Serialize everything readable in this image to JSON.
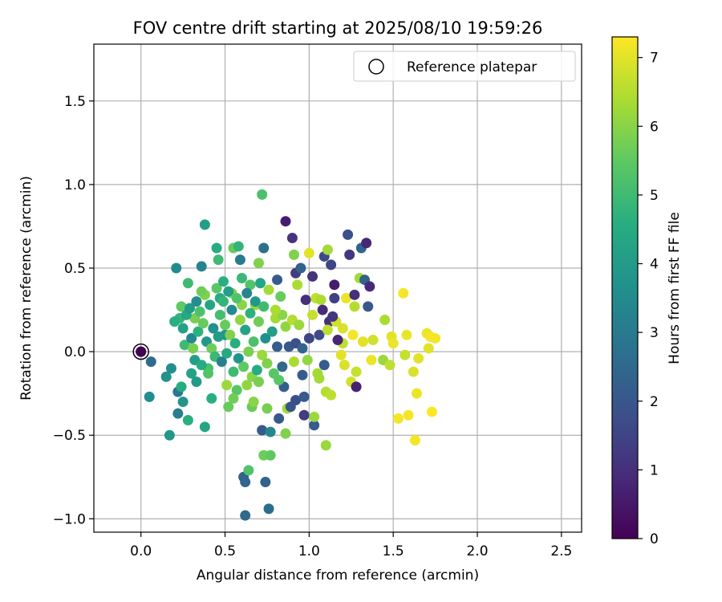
{
  "chart_data": {
    "type": "scatter",
    "title": "FOV centre drift starting at 2025/08/10 19:59:26",
    "xlabel": "Angular distance from reference (arcmin)",
    "ylabel": "Rotation from reference (arcmin)",
    "xlim": [
      -0.28,
      2.62
    ],
    "ylim": [
      -1.08,
      1.84
    ],
    "xticks": [
      0.0,
      0.5,
      1.0,
      1.5,
      2.0,
      2.5
    ],
    "xtick_labels": [
      "0.0",
      "0.5",
      "1.0",
      "1.5",
      "2.0",
      "2.5"
    ],
    "yticks": [
      -1.0,
      -0.5,
      0.0,
      0.5,
      1.0,
      1.5
    ],
    "ytick_labels": [
      "−1.0",
      "−0.5",
      "0.0",
      "0.5",
      "1.0",
      "1.5"
    ],
    "grid": true,
    "legend": {
      "placement": "top-right",
      "entries": [
        "Reference platepar"
      ]
    },
    "reference_point": {
      "x": 0.0,
      "y": 0.0,
      "hours": 0.0
    },
    "colorbar": {
      "label": "Hours from first FF file",
      "range": [
        0,
        7.3
      ],
      "ticks": [
        0,
        1,
        2,
        3,
        4,
        5,
        6,
        7
      ],
      "tick_labels": [
        "0",
        "1",
        "2",
        "3",
        "4",
        "5",
        "6",
        "7"
      ],
      "colormap": "viridis"
    },
    "points": [
      {
        "x": 0.0,
        "y": 0.0,
        "h": 0.0
      },
      {
        "x": 0.06,
        "y": -0.06,
        "h": 2.6
      },
      {
        "x": 0.05,
        "y": -0.27,
        "h": 3.6
      },
      {
        "x": 0.15,
        "y": -0.15,
        "h": 3.7
      },
      {
        "x": 0.17,
        "y": -0.5,
        "h": 3.9
      },
      {
        "x": 0.18,
        "y": -0.1,
        "h": 3.6
      },
      {
        "x": 0.21,
        "y": 0.5,
        "h": 3.5
      },
      {
        "x": 0.22,
        "y": -0.24,
        "h": 2.9
      },
      {
        "x": 0.22,
        "y": -0.37,
        "h": 3.1
      },
      {
        "x": 0.24,
        "y": -0.21,
        "h": 4.5
      },
      {
        "x": 0.25,
        "y": -0.3,
        "h": 3.8
      },
      {
        "x": 0.28,
        "y": 0.41,
        "h": 5.0
      },
      {
        "x": 0.28,
        "y": -0.41,
        "h": 4.6
      },
      {
        "x": 0.3,
        "y": -0.13,
        "h": 4.2
      },
      {
        "x": 0.32,
        "y": 0.2,
        "h": 5.8
      },
      {
        "x": 0.36,
        "y": 0.51,
        "h": 3.3
      },
      {
        "x": 0.38,
        "y": 0.76,
        "h": 4.1
      },
      {
        "x": 0.38,
        "y": -0.45,
        "h": 4.3
      },
      {
        "x": 0.4,
        "y": -0.1,
        "h": 5.2
      },
      {
        "x": 0.42,
        "y": -0.28,
        "h": 4.6
      },
      {
        "x": 0.45,
        "y": 0.62,
        "h": 4.5
      },
      {
        "x": 0.46,
        "y": 0.55,
        "h": 5.0
      },
      {
        "x": 0.47,
        "y": 0.32,
        "h": 4.5
      },
      {
        "x": 0.5,
        "y": 0.1,
        "h": 3.8
      },
      {
        "x": 0.51,
        "y": -0.2,
        "h": 6.2
      },
      {
        "x": 0.52,
        "y": -0.33,
        "h": 5.6
      },
      {
        "x": 0.54,
        "y": 0.35,
        "h": 5.9
      },
      {
        "x": 0.55,
        "y": 0.62,
        "h": 5.6
      },
      {
        "x": 0.57,
        "y": -0.23,
        "h": 5.4
      },
      {
        "x": 0.58,
        "y": 0.63,
        "h": 4.8
      },
      {
        "x": 0.59,
        "y": 0.55,
        "h": 3.0
      },
      {
        "x": 0.6,
        "y": 0.28,
        "h": 6.0
      },
      {
        "x": 0.61,
        "y": -0.75,
        "h": 2.3
      },
      {
        "x": 0.62,
        "y": -0.78,
        "h": 2.4
      },
      {
        "x": 0.62,
        "y": -0.98,
        "h": 2.5
      },
      {
        "x": 0.64,
        "y": -0.71,
        "h": 5.3
      },
      {
        "x": 0.65,
        "y": 0.4,
        "h": 5.3
      },
      {
        "x": 0.66,
        "y": -0.33,
        "h": 5.6
      },
      {
        "x": 0.68,
        "y": 0.28,
        "h": 6.1
      },
      {
        "x": 0.7,
        "y": 0.53,
        "h": 5.9
      },
      {
        "x": 0.72,
        "y": 0.94,
        "h": 5.2
      },
      {
        "x": 0.72,
        "y": -0.47,
        "h": 2.1
      },
      {
        "x": 0.73,
        "y": -0.62,
        "h": 5.7
      },
      {
        "x": 0.73,
        "y": 0.62,
        "h": 2.7
      },
      {
        "x": 0.74,
        "y": -0.78,
        "h": 2.3
      },
      {
        "x": 0.75,
        "y": -0.34,
        "h": 5.8
      },
      {
        "x": 0.76,
        "y": -0.94,
        "h": 2.6
      },
      {
        "x": 0.77,
        "y": -0.62,
        "h": 5.5
      },
      {
        "x": 0.77,
        "y": -0.48,
        "h": 3.4
      },
      {
        "x": 0.8,
        "y": 0.2,
        "h": 6.3
      },
      {
        "x": 0.81,
        "y": 0.43,
        "h": 2.1
      },
      {
        "x": 0.82,
        "y": -0.4,
        "h": 2.0
      },
      {
        "x": 0.84,
        "y": 0.22,
        "h": 6.0
      },
      {
        "x": 0.85,
        "y": -0.21,
        "h": 2.2
      },
      {
        "x": 0.86,
        "y": 0.78,
        "h": 0.6
      },
      {
        "x": 0.86,
        "y": -0.49,
        "h": 5.9
      },
      {
        "x": 0.87,
        "y": -0.34,
        "h": 6.3
      },
      {
        "x": 0.89,
        "y": -0.33,
        "h": 1.9
      },
      {
        "x": 0.9,
        "y": 0.68,
        "h": 1.1
      },
      {
        "x": 0.91,
        "y": 0.58,
        "h": 5.9
      },
      {
        "x": 0.92,
        "y": 0.47,
        "h": 1.3
      },
      {
        "x": 0.92,
        "y": -0.29,
        "h": 1.8
      },
      {
        "x": 0.93,
        "y": 0.4,
        "h": 6.4
      },
      {
        "x": 0.95,
        "y": 0.5,
        "h": 2.3
      },
      {
        "x": 0.96,
        "y": -0.14,
        "h": 2.2
      },
      {
        "x": 0.97,
        "y": -0.38,
        "h": 1.3
      },
      {
        "x": 0.97,
        "y": -0.27,
        "h": 2.1
      },
      {
        "x": 0.98,
        "y": 0.31,
        "h": 1.0
      },
      {
        "x": 0.99,
        "y": -0.05,
        "h": 6.1
      },
      {
        "x": 1.0,
        "y": 0.59,
        "h": 7.0
      },
      {
        "x": 1.02,
        "y": 0.45,
        "h": 1.1
      },
      {
        "x": 1.03,
        "y": -0.44,
        "h": 2.1
      },
      {
        "x": 1.03,
        "y": -0.39,
        "h": 6.2
      },
      {
        "x": 1.04,
        "y": 0.32,
        "h": 6.6
      },
      {
        "x": 1.05,
        "y": -0.13,
        "h": 6.3
      },
      {
        "x": 1.06,
        "y": -0.16,
        "h": 6.3
      },
      {
        "x": 1.07,
        "y": 0.31,
        "h": 6.4
      },
      {
        "x": 1.09,
        "y": -0.08,
        "h": 2.1
      },
      {
        "x": 1.09,
        "y": 0.57,
        "h": 1.6
      },
      {
        "x": 1.1,
        "y": -0.56,
        "h": 6.2
      },
      {
        "x": 1.1,
        "y": -0.24,
        "h": 6.5
      },
      {
        "x": 1.11,
        "y": 0.61,
        "h": 6.3
      },
      {
        "x": 1.12,
        "y": 0.18,
        "h": 1.0
      },
      {
        "x": 1.13,
        "y": 0.52,
        "h": 1.5
      },
      {
        "x": 1.13,
        "y": -0.26,
        "h": 6.6
      },
      {
        "x": 1.15,
        "y": 0.4,
        "h": 0.6
      },
      {
        "x": 1.16,
        "y": 0.18,
        "h": 6.8
      },
      {
        "x": 1.19,
        "y": -0.02,
        "h": 7.0
      },
      {
        "x": 1.2,
        "y": 0.05,
        "h": 6.6
      },
      {
        "x": 1.21,
        "y": -0.08,
        "h": 6.9
      },
      {
        "x": 1.22,
        "y": 0.32,
        "h": 7.1
      },
      {
        "x": 1.23,
        "y": 0.7,
        "h": 1.8
      },
      {
        "x": 1.24,
        "y": 0.58,
        "h": 1.2
      },
      {
        "x": 1.25,
        "y": -0.18,
        "h": 6.8
      },
      {
        "x": 1.26,
        "y": 0.1,
        "h": 7.2
      },
      {
        "x": 1.27,
        "y": 0.27,
        "h": 6.5
      },
      {
        "x": 1.28,
        "y": -0.21,
        "h": 0.7
      },
      {
        "x": 1.28,
        "y": -0.12,
        "h": 6.7
      },
      {
        "x": 1.3,
        "y": 0.44,
        "h": 6.3
      },
      {
        "x": 1.31,
        "y": 0.62,
        "h": 2.4
      },
      {
        "x": 1.32,
        "y": 0.06,
        "h": 7.0
      },
      {
        "x": 1.33,
        "y": 0.43,
        "h": 2.3
      },
      {
        "x": 1.34,
        "y": 0.65,
        "h": 0.8
      },
      {
        "x": 1.35,
        "y": 0.27,
        "h": 2.0
      },
      {
        "x": 1.36,
        "y": 0.39,
        "h": 0.9
      },
      {
        "x": 1.37,
        "y": -0.05,
        "h": 7.1
      },
      {
        "x": 1.38,
        "y": 0.07,
        "h": 6.8
      },
      {
        "x": 1.44,
        "y": -0.05,
        "h": 6.2
      },
      {
        "x": 1.45,
        "y": 0.19,
        "h": 6.4
      },
      {
        "x": 1.48,
        "y": -0.08,
        "h": 6.6
      },
      {
        "x": 1.49,
        "y": 0.09,
        "h": 7.0
      },
      {
        "x": 1.5,
        "y": 0.05,
        "h": 7.1
      },
      {
        "x": 1.53,
        "y": -0.4,
        "h": 7.2
      },
      {
        "x": 1.56,
        "y": 0.35,
        "h": 7.2
      },
      {
        "x": 1.57,
        "y": -0.02,
        "h": 6.7
      },
      {
        "x": 1.58,
        "y": 0.1,
        "h": 7.1
      },
      {
        "x": 1.59,
        "y": -0.38,
        "h": 7.2
      },
      {
        "x": 1.62,
        "y": -0.12,
        "h": 6.9
      },
      {
        "x": 1.63,
        "y": -0.53,
        "h": 7.2
      },
      {
        "x": 1.64,
        "y": -0.25,
        "h": 7.1
      },
      {
        "x": 1.65,
        "y": -0.04,
        "h": 7.0
      },
      {
        "x": 1.7,
        "y": 0.11,
        "h": 7.1
      },
      {
        "x": 1.71,
        "y": 0.02,
        "h": 7.0
      },
      {
        "x": 1.72,
        "y": 0.09,
        "h": 7.2
      },
      {
        "x": 1.73,
        "y": -0.36,
        "h": 7.3
      },
      {
        "x": 1.75,
        "y": 0.08,
        "h": 7.2
      },
      {
        "x": 0.23,
        "y": 0.2,
        "h": 4.8
      },
      {
        "x": 0.24,
        "y": 0.27,
        "h": 5.5
      },
      {
        "x": 0.25,
        "y": 0.14,
        "h": 4.2
      },
      {
        "x": 0.26,
        "y": 0.04,
        "h": 5.0
      },
      {
        "x": 0.27,
        "y": 0.22,
        "h": 4.4
      },
      {
        "x": 0.29,
        "y": 0.26,
        "h": 4.0
      },
      {
        "x": 0.3,
        "y": 0.08,
        "h": 3.4
      },
      {
        "x": 0.31,
        "y": 0.02,
        "h": 5.8
      },
      {
        "x": 0.32,
        "y": -0.05,
        "h": 4.1
      },
      {
        "x": 0.33,
        "y": 0.3,
        "h": 3.6
      },
      {
        "x": 0.34,
        "y": 0.12,
        "h": 4.7
      },
      {
        "x": 0.35,
        "y": 0.24,
        "h": 5.2
      },
      {
        "x": 0.36,
        "y": -0.08,
        "h": 4.5
      },
      {
        "x": 0.37,
        "y": 0.17,
        "h": 5.6
      },
      {
        "x": 0.38,
        "y": 0.34,
        "h": 5.9
      },
      {
        "x": 0.39,
        "y": 0.06,
        "h": 3.9
      },
      {
        "x": 0.4,
        "y": -0.13,
        "h": 5.3
      },
      {
        "x": 0.41,
        "y": 0.28,
        "h": 4.3
      },
      {
        "x": 0.42,
        "y": 0.02,
        "h": 5.7
      },
      {
        "x": 0.43,
        "y": 0.14,
        "h": 3.7
      },
      {
        "x": 0.44,
        "y": -0.03,
        "h": 4.9
      },
      {
        "x": 0.45,
        "y": 0.38,
        "h": 5.4
      },
      {
        "x": 0.46,
        "y": 0.09,
        "h": 4.0
      },
      {
        "x": 0.47,
        "y": 0.22,
        "h": 5.1
      },
      {
        "x": 0.48,
        "y": -0.06,
        "h": 3.2
      },
      {
        "x": 0.49,
        "y": 0.3,
        "h": 4.8
      },
      {
        "x": 0.5,
        "y": 0.16,
        "h": 5.6
      },
      {
        "x": 0.51,
        "y": -0.01,
        "h": 4.4
      },
      {
        "x": 0.52,
        "y": 0.36,
        "h": 4.1
      },
      {
        "x": 0.53,
        "y": 0.1,
        "h": 5.9
      },
      {
        "x": 0.54,
        "y": 0.25,
        "h": 3.5
      },
      {
        "x": 0.55,
        "y": -0.12,
        "h": 5.0
      },
      {
        "x": 0.56,
        "y": 0.05,
        "h": 4.6
      },
      {
        "x": 0.57,
        "y": 0.32,
        "h": 5.3
      },
      {
        "x": 0.58,
        "y": -0.04,
        "h": 3.8
      },
      {
        "x": 0.59,
        "y": 0.19,
        "h": 6.1
      },
      {
        "x": 0.6,
        "y": 0.44,
        "h": 4.9
      },
      {
        "x": 0.61,
        "y": -0.09,
        "h": 5.5
      },
      {
        "x": 0.62,
        "y": 0.13,
        "h": 4.2
      },
      {
        "x": 0.63,
        "y": 0.35,
        "h": 3.3
      },
      {
        "x": 0.64,
        "y": 0.0,
        "h": 5.8
      },
      {
        "x": 0.65,
        "y": 0.23,
        "h": 4.7
      },
      {
        "x": 0.66,
        "y": -0.15,
        "h": 6.0
      },
      {
        "x": 0.67,
        "y": 0.06,
        "h": 5.2
      },
      {
        "x": 0.68,
        "y": 0.3,
        "h": 3.9
      },
      {
        "x": 0.69,
        "y": -0.11,
        "h": 4.5
      },
      {
        "x": 0.7,
        "y": 0.18,
        "h": 5.7
      },
      {
        "x": 0.71,
        "y": 0.41,
        "h": 4.3
      },
      {
        "x": 0.72,
        "y": -0.02,
        "h": 6.2
      },
      {
        "x": 0.73,
        "y": 0.27,
        "h": 5.0
      },
      {
        "x": 0.74,
        "y": 0.08,
        "h": 3.6
      },
      {
        "x": 0.75,
        "y": -0.07,
        "h": 5.9
      },
      {
        "x": 0.76,
        "y": 0.37,
        "h": 6.3
      },
      {
        "x": 0.78,
        "y": 0.12,
        "h": 4.1
      },
      {
        "x": 0.79,
        "y": -0.13,
        "h": 5.4
      },
      {
        "x": 0.8,
        "y": 0.25,
        "h": 6.4
      },
      {
        "x": 0.81,
        "y": 0.03,
        "h": 2.2
      },
      {
        "x": 0.83,
        "y": 0.33,
        "h": 5.6
      },
      {
        "x": 0.84,
        "y": -0.09,
        "h": 2.5
      },
      {
        "x": 0.86,
        "y": 0.15,
        "h": 6.1
      },
      {
        "x": 0.88,
        "y": 0.03,
        "h": 2.0
      },
      {
        "x": 0.9,
        "y": 0.19,
        "h": 6.5
      },
      {
        "x": 0.92,
        "y": 0.05,
        "h": 1.8
      },
      {
        "x": 0.94,
        "y": 0.16,
        "h": 6.2
      },
      {
        "x": 0.96,
        "y": 0.02,
        "h": 2.4
      },
      {
        "x": 1.0,
        "y": 0.08,
        "h": 1.5
      },
      {
        "x": 1.02,
        "y": 0.22,
        "h": 6.7
      },
      {
        "x": 1.06,
        "y": 0.1,
        "h": 1.7
      },
      {
        "x": 1.08,
        "y": 0.25,
        "h": 0.9
      },
      {
        "x": 1.11,
        "y": 0.13,
        "h": 6.6
      },
      {
        "x": 1.14,
        "y": 0.21,
        "h": 1.2
      },
      {
        "x": 1.17,
        "y": 0.07,
        "h": 0.8
      },
      {
        "x": 1.2,
        "y": 0.14,
        "h": 6.9
      },
      {
        "x": 0.2,
        "y": 0.18,
        "h": 4.6
      },
      {
        "x": 0.33,
        "y": -0.18,
        "h": 4.0
      },
      {
        "x": 0.36,
        "y": 0.36,
        "h": 5.7
      },
      {
        "x": 0.49,
        "y": 0.42,
        "h": 4.6
      },
      {
        "x": 0.55,
        "y": -0.28,
        "h": 5.7
      },
      {
        "x": 0.63,
        "y": -0.2,
        "h": 6.1
      },
      {
        "x": 0.67,
        "y": -0.3,
        "h": 6.0
      },
      {
        "x": 0.7,
        "y": -0.18,
        "h": 5.8
      },
      {
        "x": 0.82,
        "y": -0.17,
        "h": 5.4
      },
      {
        "x": 0.91,
        "y": -0.06,
        "h": 6.4
      },
      {
        "x": 1.15,
        "y": 0.32,
        "h": 1.4
      },
      {
        "x": 1.27,
        "y": 0.34,
        "h": 1.0
      }
    ]
  }
}
